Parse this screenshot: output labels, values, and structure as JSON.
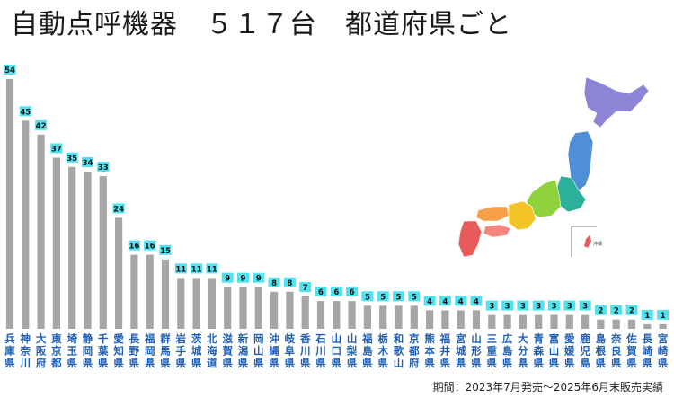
{
  "title": "自動点呼機器　５１７台　都道府県ごと",
  "footer": "期間：2023年7月発売～2025年6月末販売実績",
  "colors": {
    "bar": "#a6a6a6",
    "label_bg": "#4fe3ef",
    "category_text": "#1f5fb4"
  },
  "map": {
    "okinawa_label": "沖縄"
  },
  "chart_data": {
    "type": "bar",
    "categories": [
      "兵庫県",
      "神奈川",
      "大阪府",
      "東京都",
      "埼玉県",
      "静岡県",
      "千葉県",
      "愛知県",
      "長野県",
      "福岡県",
      "群馬県",
      "岩手県",
      "茨城県",
      "北海道",
      "滋賀県",
      "新潟県",
      "岡山県",
      "沖縄県",
      "岐阜県",
      "香川県",
      "石川県",
      "山口県",
      "山梨県",
      "福島県",
      "栃木県",
      "和歌山",
      "京都府",
      "熊本県",
      "福井県",
      "宮城県",
      "山形県",
      "三重県",
      "広島県",
      "大分県",
      "青森県",
      "富山県",
      "愛媛県",
      "鹿児島",
      "島根県",
      "奈良県",
      "佐賀県",
      "長崎県",
      "宮崎県"
    ],
    "values": [
      54,
      45,
      42,
      37,
      35,
      34,
      33,
      24,
      16,
      16,
      15,
      11,
      11,
      11,
      9,
      9,
      9,
      8,
      8,
      7,
      6,
      6,
      6,
      5,
      5,
      5,
      5,
      4,
      4,
      4,
      4,
      3,
      3,
      3,
      3,
      3,
      3,
      3,
      2,
      2,
      2,
      1,
      1
    ],
    "ylim": [
      0,
      56
    ],
    "grid": false,
    "legend": "none"
  }
}
